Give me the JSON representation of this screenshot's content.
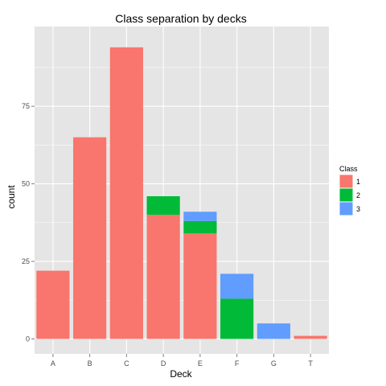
{
  "chart_data": {
    "type": "bar",
    "stacked": true,
    "title": "Class separation by decks",
    "xlabel": "Deck",
    "ylabel": "count",
    "categories": [
      "A",
      "B",
      "C",
      "D",
      "E",
      "F",
      "G",
      "T"
    ],
    "series": [
      {
        "name": "1",
        "color": "#F8766D",
        "values": [
          22,
          65,
          94,
          40,
          34,
          0,
          0,
          1
        ]
      },
      {
        "name": "2",
        "color": "#00BA38",
        "values": [
          0,
          0,
          0,
          6,
          4,
          13,
          0,
          0
        ]
      },
      {
        "name": "3",
        "color": "#619CFF",
        "values": [
          0,
          0,
          0,
          0,
          3,
          8,
          5,
          0
        ]
      }
    ],
    "y_ticks": [
      0,
      25,
      50,
      75
    ],
    "ylim": [
      -4.8,
      100.7
    ],
    "grid": true,
    "panel_background": "#E5E5E5",
    "grid_color": "#FFFFFF",
    "legend": {
      "title": "Class",
      "position": "right"
    }
  }
}
